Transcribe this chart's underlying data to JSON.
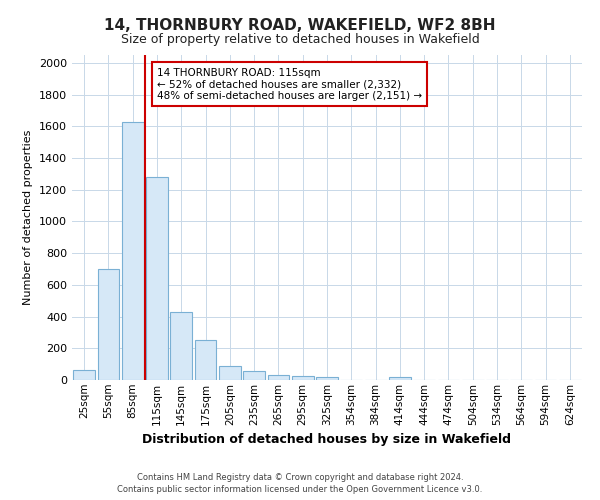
{
  "title1": "14, THORNBURY ROAD, WAKEFIELD, WF2 8BH",
  "title2": "Size of property relative to detached houses in Wakefield",
  "xlabel": "Distribution of detached houses by size in Wakefield",
  "ylabel": "Number of detached properties",
  "footer1": "Contains HM Land Registry data © Crown copyright and database right 2024.",
  "footer2": "Contains public sector information licensed under the Open Government Licence v3.0.",
  "annotation_line1": "14 THORNBURY ROAD: 115sqm",
  "annotation_line2": "← 52% of detached houses are smaller (2,332)",
  "annotation_line3": "48% of semi-detached houses are larger (2,151) →",
  "categories": [
    "25sqm",
    "55sqm",
    "85sqm",
    "115sqm",
    "145sqm",
    "175sqm",
    "205sqm",
    "235sqm",
    "265sqm",
    "295sqm",
    "325sqm",
    "354sqm",
    "384sqm",
    "414sqm",
    "444sqm",
    "474sqm",
    "504sqm",
    "534sqm",
    "564sqm",
    "594sqm",
    "624sqm"
  ],
  "values": [
    65,
    700,
    1630,
    1280,
    430,
    255,
    90,
    55,
    30,
    25,
    20,
    0,
    0,
    20,
    0,
    0,
    0,
    0,
    0,
    0,
    0
  ],
  "bar_color": "#d6e8f7",
  "bar_edge_color": "#7ab0d4",
  "red_line_color": "#cc0000",
  "annotation_box_color": "#cc0000",
  "grid_color": "#c8d8e8",
  "bg_color": "#ffffff",
  "plot_bg_color": "#ffffff",
  "ylim": [
    0,
    2050
  ],
  "yticks": [
    0,
    200,
    400,
    600,
    800,
    1000,
    1200,
    1400,
    1600,
    1800,
    2000
  ],
  "title1_fontsize": 11,
  "title2_fontsize": 9
}
